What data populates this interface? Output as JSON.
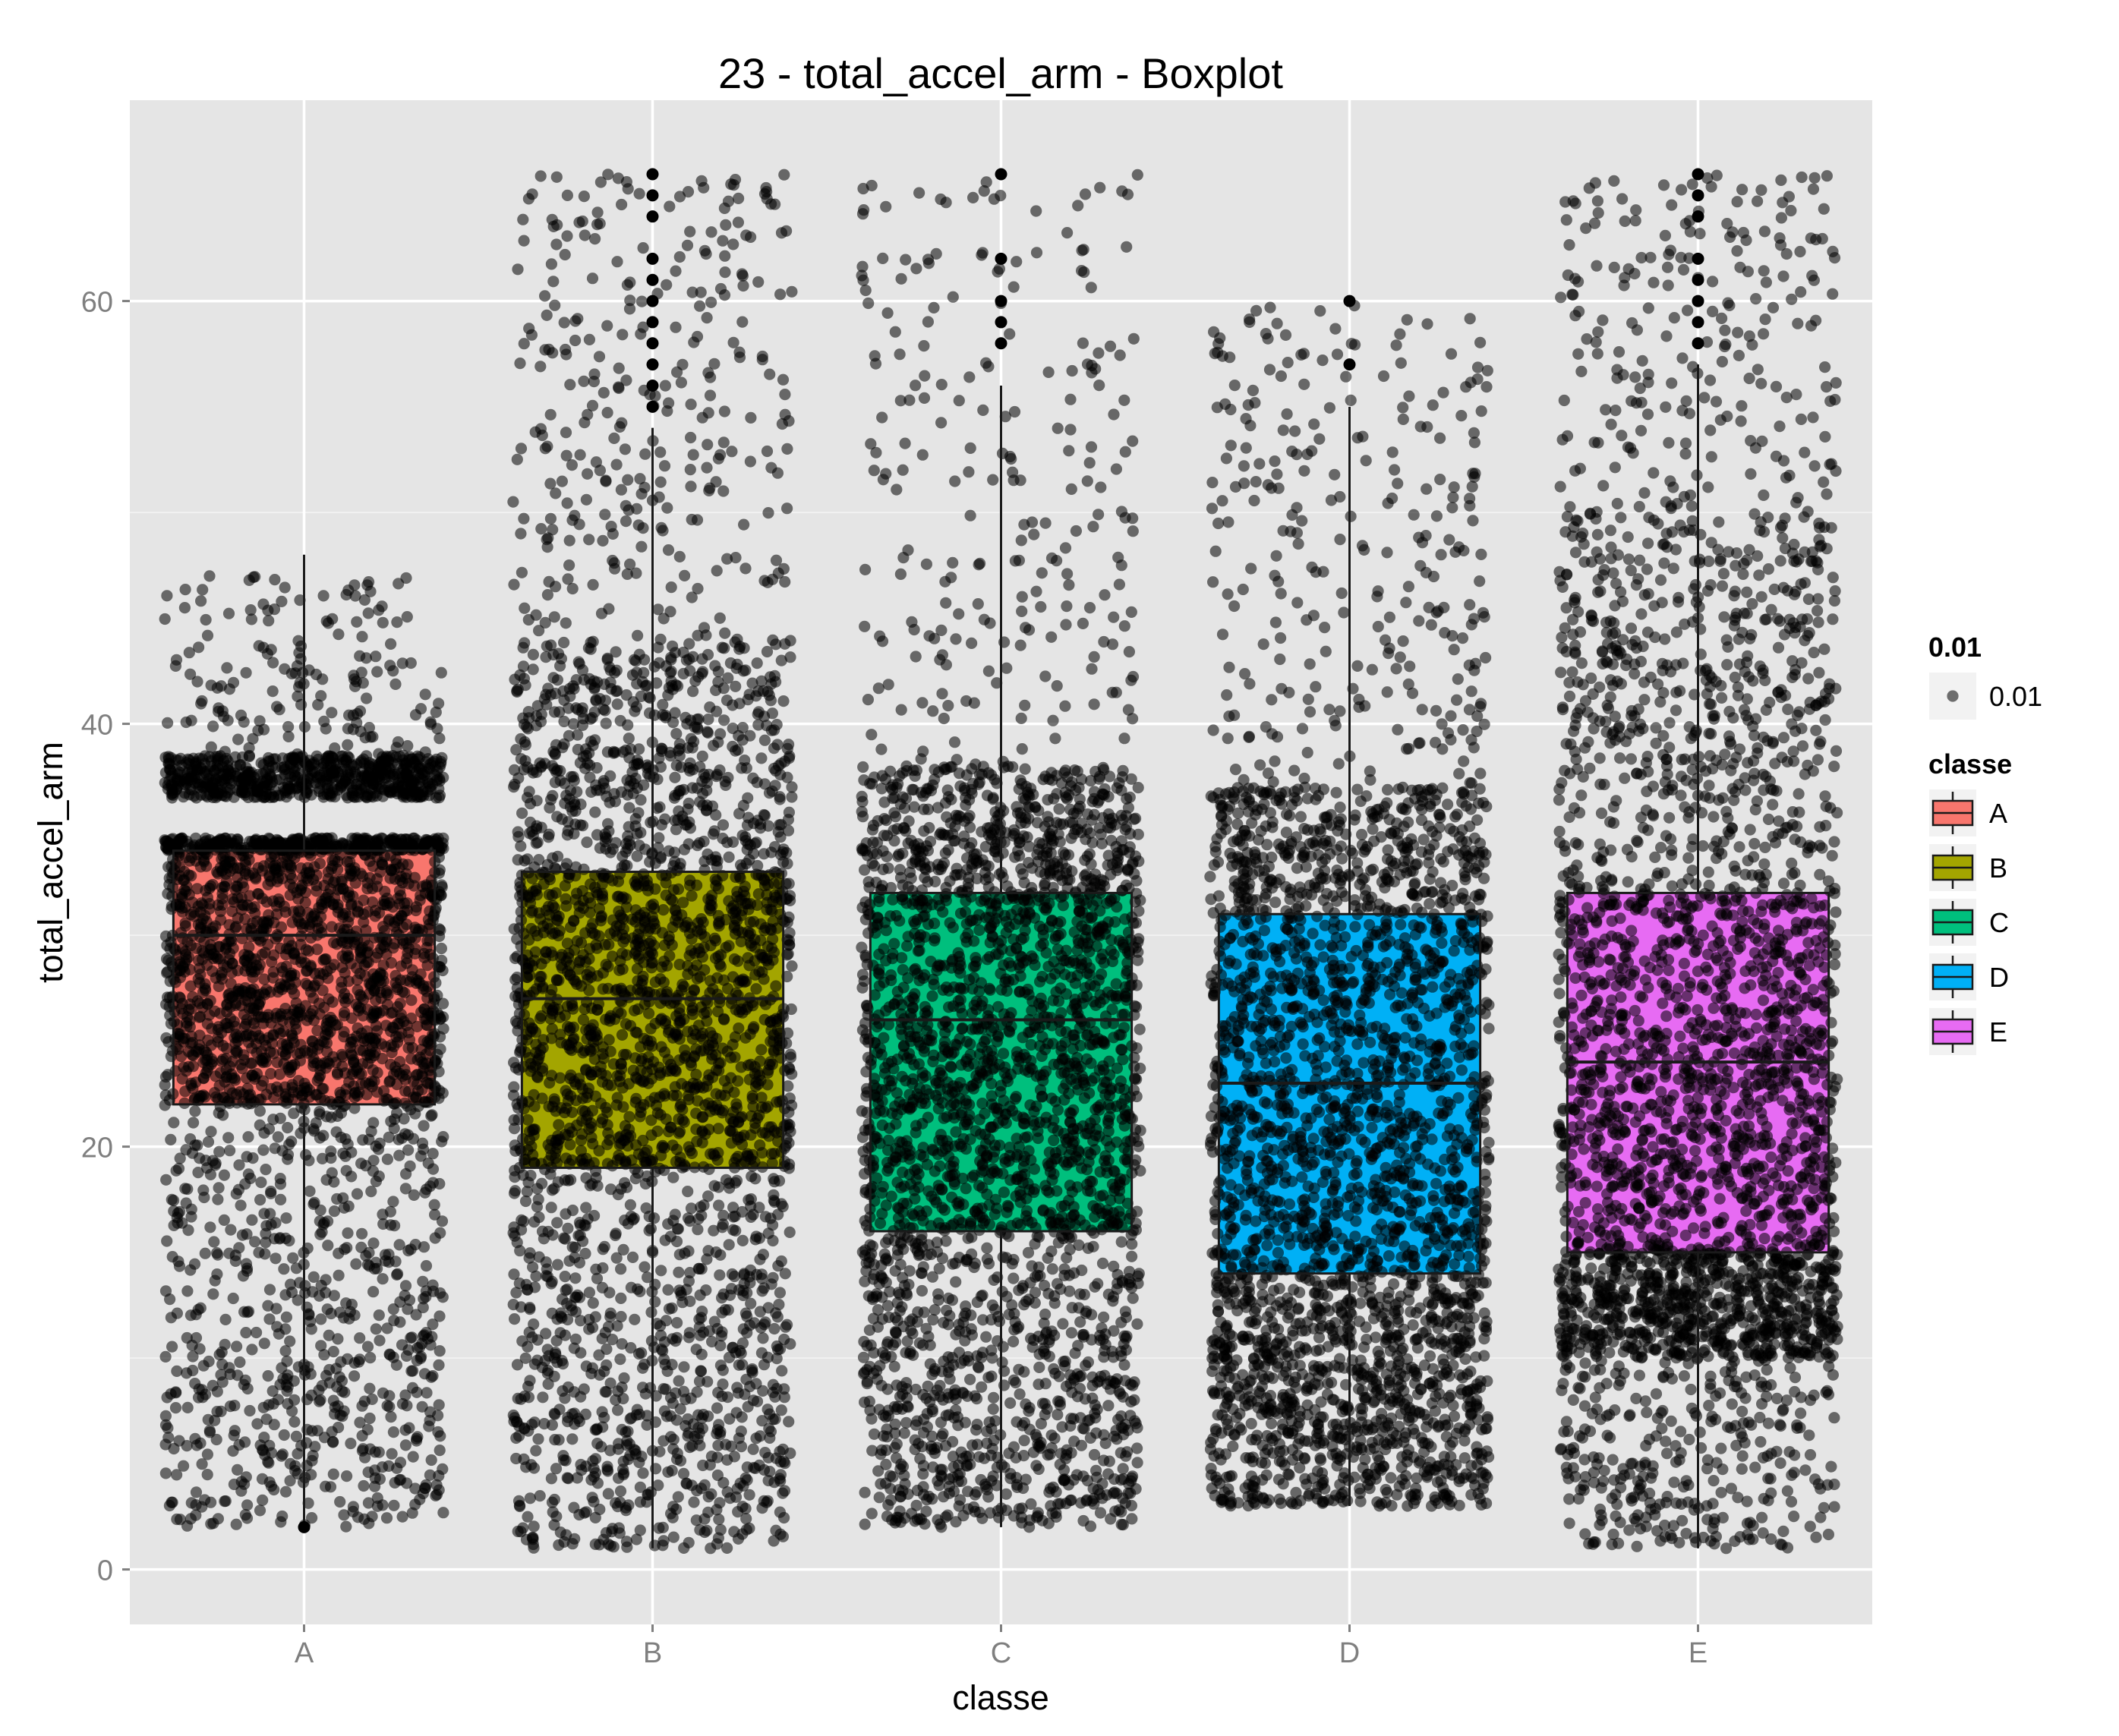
{
  "chart_data": {
    "type": "boxplot",
    "title": "23 - total_accel_arm - Boxplot",
    "xlabel": "classe",
    "ylabel": "total_accel_arm",
    "categories": [
      "A",
      "B",
      "C",
      "D",
      "E"
    ],
    "ylim": [
      -2.6,
      69.5
    ],
    "y_ticks": [
      0,
      20,
      40,
      60
    ],
    "grid": true,
    "legend_position": "right",
    "background_color": "#e5e5e5",
    "point_color": "#000000",
    "point_alpha": 0.55,
    "boxes": [
      {
        "name": "A",
        "color": "#f8766d",
        "whisker_low": 2,
        "q1": 22,
        "median": 30,
        "q3": 34,
        "whisker_high": 48,
        "outliers": [
          2
        ]
      },
      {
        "name": "B",
        "color": "#a3a500",
        "whisker_low": 1,
        "q1": 19,
        "median": 27,
        "q3": 33,
        "whisker_high": 54,
        "outliers": [
          55,
          56,
          57,
          58,
          59,
          60,
          61,
          62,
          64,
          65,
          66
        ]
      },
      {
        "name": "C",
        "color": "#00bf7d",
        "whisker_low": 2,
        "q1": 16,
        "median": 26,
        "q3": 32,
        "whisker_high": 56,
        "outliers": [
          58,
          59,
          60,
          62,
          66
        ]
      },
      {
        "name": "D",
        "color": "#00b0f6",
        "whisker_low": 3,
        "q1": 14,
        "median": 23,
        "q3": 31,
        "whisker_high": 55,
        "outliers": [
          57,
          60
        ]
      },
      {
        "name": "E",
        "color": "#e76bf3",
        "whisker_low": 1,
        "q1": 15,
        "median": 24,
        "q3": 32,
        "whisker_high": 57,
        "outliers": [
          58,
          59,
          60,
          61,
          62,
          64,
          65,
          66
        ]
      }
    ],
    "jitter": [
      {
        "name": "A",
        "bands": [
          {
            "lo": 2,
            "hi": 22,
            "n": 700
          },
          {
            "lo": 22,
            "hi": 34,
            "n": 1400
          },
          {
            "lo": 34,
            "hi": 34.6,
            "n": 350
          },
          {
            "lo": 36.5,
            "hi": 38.5,
            "n": 650
          },
          {
            "lo": 38.5,
            "hi": 47,
            "n": 160
          }
        ]
      },
      {
        "name": "B",
        "bands": [
          {
            "lo": 1,
            "hi": 19,
            "n": 800
          },
          {
            "lo": 19,
            "hi": 33,
            "n": 1200
          },
          {
            "lo": 33,
            "hi": 44,
            "n": 600
          },
          {
            "lo": 44,
            "hi": 66,
            "n": 300
          }
        ]
      },
      {
        "name": "C",
        "bands": [
          {
            "lo": 2,
            "hi": 16,
            "n": 800
          },
          {
            "lo": 16,
            "hi": 32,
            "n": 1300
          },
          {
            "lo": 32,
            "hi": 38,
            "n": 500
          },
          {
            "lo": 38,
            "hi": 66,
            "n": 230
          }
        ]
      },
      {
        "name": "D",
        "bands": [
          {
            "lo": 3,
            "hi": 14,
            "n": 1000
          },
          {
            "lo": 14,
            "hi": 31,
            "n": 1200
          },
          {
            "lo": 31,
            "hi": 37,
            "n": 450
          },
          {
            "lo": 37,
            "hi": 60,
            "n": 280
          }
        ]
      },
      {
        "name": "E",
        "bands": [
          {
            "lo": 1,
            "hi": 10,
            "n": 320
          },
          {
            "lo": 10,
            "hi": 15,
            "n": 750
          },
          {
            "lo": 15,
            "hi": 32,
            "n": 1200
          },
          {
            "lo": 32,
            "hi": 50,
            "n": 650
          },
          {
            "lo": 50,
            "hi": 66,
            "n": 230
          }
        ]
      }
    ],
    "legends": [
      {
        "title": "0.01",
        "kind": "point",
        "entries": [
          {
            "label": "0.01",
            "color": "#000000"
          }
        ]
      },
      {
        "title": "classe",
        "kind": "box",
        "entries": [
          {
            "label": "A",
            "color": "#f8766d"
          },
          {
            "label": "B",
            "color": "#a3a500"
          },
          {
            "label": "C",
            "color": "#00bf7d"
          },
          {
            "label": "D",
            "color": "#00b0f6"
          },
          {
            "label": "E",
            "color": "#e76bf3"
          }
        ]
      }
    ]
  }
}
